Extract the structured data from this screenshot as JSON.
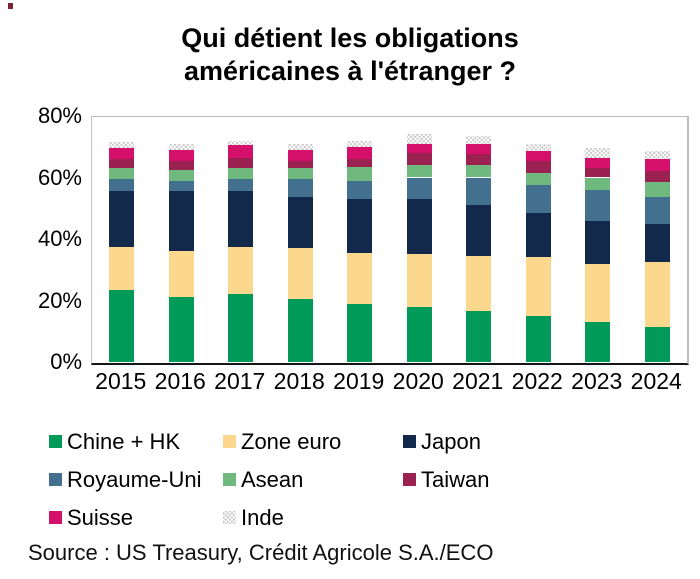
{
  "title": {
    "line1": "Qui détient les obligations",
    "line2": "américaines à l'étranger ?"
  },
  "source": "Source : US Treasury, Crédit Agricole S.A./ECO",
  "corner_mark_color": "#7a2233",
  "chart_data": {
    "type": "bar",
    "stacked": true,
    "title": "Qui détient les obligations américaines à l'étranger ?",
    "xlabel": "",
    "ylabel": "",
    "grid": false,
    "legend_position": "bottom",
    "ylim": [
      0,
      80
    ],
    "y_ticks": [
      {
        "label": "80%",
        "value": 80
      },
      {
        "label": "60%",
        "value": 60
      },
      {
        "label": "40%",
        "value": 40
      },
      {
        "label": "20%",
        "value": 20
      },
      {
        "label": "0%",
        "value": 0
      }
    ],
    "categories": [
      "2015",
      "2016",
      "2017",
      "2018",
      "2019",
      "2020",
      "2021",
      "2022",
      "2023",
      "2024"
    ],
    "series": [
      {
        "name": "Chine + HK",
        "color": "#019a58",
        "pattern": "solid",
        "values": [
          23.5,
          21.0,
          22.0,
          20.5,
          19.0,
          18.0,
          16.5,
          15.0,
          13.0,
          11.5
        ]
      },
      {
        "name": "Zone euro",
        "color": "#fbd88d",
        "pattern": "solid",
        "values": [
          14.0,
          15.0,
          15.5,
          16.5,
          16.5,
          17.0,
          18.0,
          19.0,
          19.0,
          21.0
        ]
      },
      {
        "name": "Japon",
        "color": "#12294b",
        "pattern": "solid",
        "values": [
          18.0,
          19.5,
          18.0,
          16.5,
          17.5,
          18.0,
          16.5,
          14.5,
          14.0,
          12.5
        ]
      },
      {
        "name": "Royaume-Uni",
        "color": "#44708f",
        "pattern": "solid",
        "values": [
          4.0,
          3.5,
          4.0,
          6.0,
          6.0,
          7.0,
          9.0,
          9.0,
          10.0,
          8.5
        ]
      },
      {
        "name": "Asean",
        "color": "#6fb97f",
        "pattern": "solid",
        "values": [
          3.5,
          3.5,
          3.5,
          3.5,
          4.5,
          4.0,
          4.0,
          4.0,
          4.0,
          5.0
        ]
      },
      {
        "name": "Taiwan",
        "color": "#9b2150",
        "pattern": "solid",
        "values": [
          3.0,
          3.0,
          3.5,
          2.5,
          2.5,
          4.0,
          3.5,
          4.0,
          3.0,
          3.5
        ]
      },
      {
        "name": "Suisse",
        "color": "#d5106a",
        "pattern": "solid",
        "values": [
          3.5,
          3.5,
          4.0,
          3.5,
          4.0,
          3.0,
          3.5,
          3.0,
          3.5,
          4.0
        ]
      },
      {
        "name": "Inde",
        "color": "#c7c7c7",
        "pattern": "crosshatch",
        "values": [
          2.0,
          2.0,
          1.5,
          2.0,
          2.0,
          3.0,
          2.5,
          2.5,
          3.0,
          2.5
        ]
      }
    ]
  }
}
